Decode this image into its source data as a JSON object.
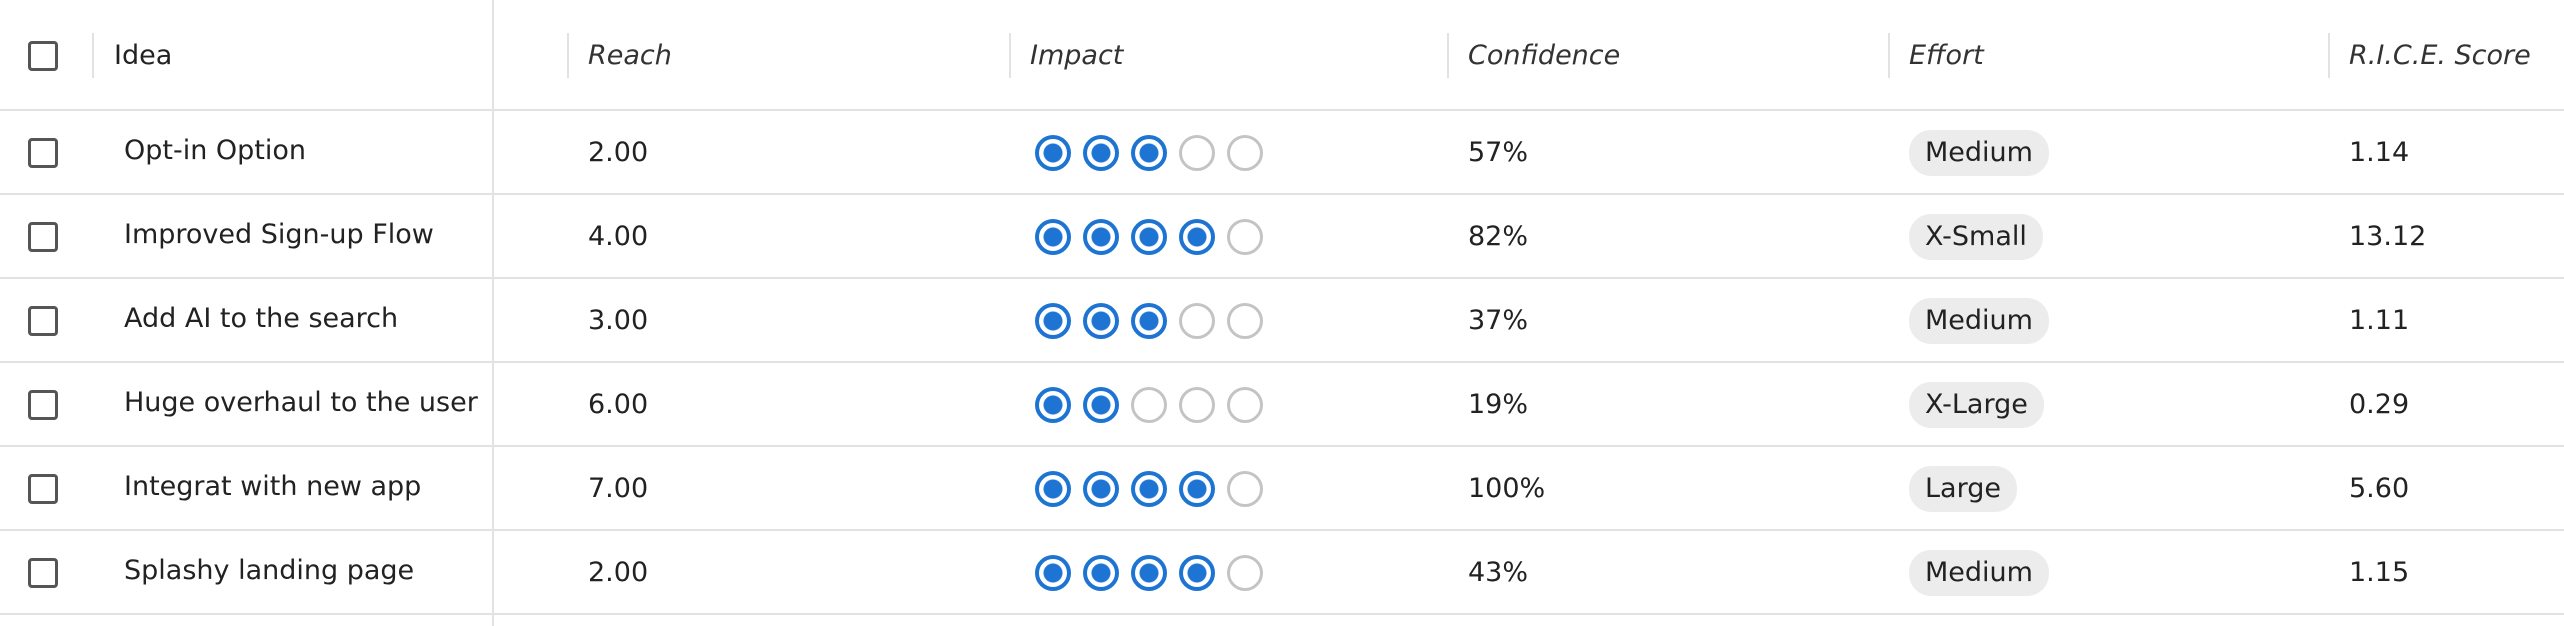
{
  "table": {
    "columns": [
      "Idea",
      "Reach",
      "Impact",
      "Confidence",
      "Effort",
      "R.I.C.E. Score"
    ],
    "rating_max": 5,
    "rows": [
      {
        "idea": "Opt-in Option",
        "reach": "2.00",
        "impact": 3,
        "confidence": "57%",
        "effort": "Medium",
        "score": "1.14"
      },
      {
        "idea": "Improved Sign-up Flow",
        "reach": "4.00",
        "impact": 4,
        "confidence": "82%",
        "effort": "X-Small",
        "score": "13.12"
      },
      {
        "idea": "Add AI to the search",
        "reach": "3.00",
        "impact": 3,
        "confidence": "37%",
        "effort": "Medium",
        "score": "1.11"
      },
      {
        "idea": "Huge overhaul to the user",
        "reach": "6.00",
        "impact": 2,
        "confidence": "19%",
        "effort": "X-Large",
        "score": "0.29"
      },
      {
        "idea": "Integrat with new app",
        "reach": "7.00",
        "impact": 4,
        "confidence": "100%",
        "effort": "Large",
        "score": "5.60"
      },
      {
        "idea": "Splashy landing page",
        "reach": "2.00",
        "impact": 4,
        "confidence": "43%",
        "effort": "Medium",
        "score": "1.15"
      }
    ]
  }
}
